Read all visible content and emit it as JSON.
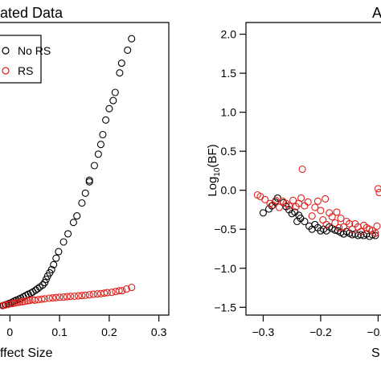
{
  "charts": [
    {
      "title": "ated Data",
      "xlabel": "ffect Size",
      "type": "scatter",
      "xlim": [
        -0.02,
        0.32
      ],
      "ylim": [
        -0.15,
        1.65
      ],
      "x_ticks": [
        0.0,
        0.1,
        0.2,
        0.3
      ],
      "x_tick_labels": [
        "0",
        "0.1",
        "0.2",
        "0.3"
      ],
      "legend": {
        "placement": "top-left",
        "entries": [
          "No RS",
          "RS"
        ]
      },
      "colors": {
        "No RS": "#000000",
        "RS": "#e0201b"
      }
    },
    {
      "title": "A",
      "xlabel": "S",
      "ylabel_base": "Log",
      "ylabel_sub": "10",
      "ylabel_tail": "(BF)",
      "type": "scatter",
      "xlim": [
        -0.33,
        -0.095
      ],
      "ylim": [
        -1.6,
        2.15
      ],
      "x_ticks": [
        -0.3,
        -0.2,
        -0.1
      ],
      "x_tick_labels": [
        "−0.3",
        "−0.2",
        "−0."
      ],
      "y_ticks": [
        -1.5,
        -1.0,
        -0.5,
        0.0,
        0.5,
        1.0,
        1.5,
        2.0
      ],
      "y_tick_labels": [
        "−1.5",
        "−1.0",
        "−0.5",
        "0.0",
        "0.5",
        "1.0",
        "1.5",
        "2.0"
      ],
      "colors": {
        "No RS": "#000000",
        "RS": "#e0201b"
      }
    }
  ],
  "chart_data": [
    {
      "type": "scatter",
      "title": "ated Data",
      "xlabel": "ffect Size",
      "ylabel": "",
      "xlim": [
        -0.02,
        0.32
      ],
      "ylim": [
        -0.15,
        1.65
      ],
      "series": [
        {
          "name": "No RS",
          "color": "#000000",
          "points": [
            [
              0.245,
              1.55
            ],
            [
              0.237,
              1.48
            ],
            [
              0.225,
              1.4
            ],
            [
              0.221,
              1.34
            ],
            [
              0.212,
              1.22
            ],
            [
              0.208,
              1.17
            ],
            [
              0.2,
              1.12
            ],
            [
              0.193,
              1.05
            ],
            [
              0.187,
              0.96
            ],
            [
              0.183,
              0.9
            ],
            [
              0.178,
              0.84
            ],
            [
              0.17,
              0.77
            ],
            [
              0.16,
              0.68
            ],
            [
              0.16,
              0.67
            ],
            [
              0.152,
              0.6
            ],
            [
              0.145,
              0.54
            ],
            [
              0.135,
              0.46
            ],
            [
              0.128,
              0.42
            ],
            [
              0.117,
              0.35
            ],
            [
              0.108,
              0.3
            ],
            [
              0.098,
              0.24
            ],
            [
              0.093,
              0.2
            ],
            [
              0.088,
              0.16
            ],
            [
              0.084,
              0.13
            ],
            [
              0.08,
              0.11
            ],
            [
              0.076,
              0.09
            ],
            [
              0.073,
              0.07
            ],
            [
              0.07,
              0.05
            ],
            [
              0.066,
              0.035
            ],
            [
              0.06,
              0.022
            ],
            [
              0.056,
              0.012
            ],
            [
              0.052,
              0.004
            ],
            [
              0.046,
              -0.008
            ],
            [
              0.042,
              -0.015
            ],
            [
              0.037,
              -0.022
            ],
            [
              0.032,
              -0.03
            ],
            [
              0.027,
              -0.038
            ],
            [
              0.022,
              -0.046
            ],
            [
              0.018,
              -0.052
            ],
            [
              0.013,
              -0.058
            ],
            [
              0.009,
              -0.064
            ],
            [
              0.005,
              -0.07
            ],
            [
              0.001,
              -0.076
            ],
            [
              -0.003,
              -0.08
            ],
            [
              -0.008,
              -0.085
            ],
            [
              -0.013,
              -0.09
            ]
          ]
        },
        {
          "name": "RS",
          "color": "#e0201b",
          "points": [
            [
              0.245,
              0.02
            ],
            [
              0.235,
              0.01
            ],
            [
              0.226,
              0.0
            ],
            [
              0.22,
              0.0
            ],
            [
              0.213,
              -0.005
            ],
            [
              0.205,
              -0.01
            ],
            [
              0.196,
              -0.012
            ],
            [
              0.19,
              -0.015
            ],
            [
              0.183,
              -0.018
            ],
            [
              0.176,
              -0.02
            ],
            [
              0.168,
              -0.022
            ],
            [
              0.16,
              -0.025
            ],
            [
              0.152,
              -0.028
            ],
            [
              0.145,
              -0.03
            ],
            [
              0.138,
              -0.032
            ],
            [
              0.13,
              -0.034
            ],
            [
              0.122,
              -0.035
            ],
            [
              0.115,
              -0.037
            ],
            [
              0.108,
              -0.039
            ],
            [
              0.1,
              -0.04
            ],
            [
              0.093,
              -0.042
            ],
            [
              0.086,
              -0.044
            ],
            [
              0.079,
              -0.046
            ],
            [
              0.07,
              -0.05
            ],
            [
              0.064,
              -0.052
            ],
            [
              0.057,
              -0.055
            ],
            [
              0.05,
              -0.058
            ],
            [
              0.045,
              -0.055
            ],
            [
              0.04,
              -0.06
            ],
            [
              0.035,
              -0.062
            ],
            [
              0.03,
              -0.065
            ],
            [
              0.025,
              -0.068
            ],
            [
              0.02,
              -0.07
            ],
            [
              0.016,
              -0.072
            ],
            [
              0.011,
              -0.075
            ],
            [
              0.006,
              -0.078
            ],
            [
              0.002,
              -0.08
            ],
            [
              -0.004,
              -0.084
            ],
            [
              -0.01,
              -0.088
            ],
            [
              -0.015,
              -0.092
            ]
          ]
        }
      ]
    },
    {
      "type": "scatter",
      "title": "A",
      "xlabel": "S",
      "ylabel": "Log10(BF)",
      "xlim": [
        -0.33,
        -0.095
      ],
      "ylim": [
        -1.6,
        2.15
      ],
      "series": [
        {
          "name": "No RS",
          "color": "#000000",
          "points": [
            [
              -0.3,
              -0.29
            ],
            [
              -0.29,
              -0.24
            ],
            [
              -0.285,
              -0.2
            ],
            [
              -0.279,
              -0.15
            ],
            [
              -0.275,
              -0.1
            ],
            [
              -0.265,
              -0.16
            ],
            [
              -0.26,
              -0.21
            ],
            [
              -0.255,
              -0.25
            ],
            [
              -0.25,
              -0.3
            ],
            [
              -0.245,
              -0.28
            ],
            [
              -0.241,
              -0.4
            ],
            [
              -0.238,
              -0.32
            ],
            [
              -0.235,
              -0.36
            ],
            [
              -0.228,
              -0.4
            ],
            [
              -0.22,
              -0.46
            ],
            [
              -0.215,
              -0.5
            ],
            [
              -0.21,
              -0.44
            ],
            [
              -0.205,
              -0.48
            ],
            [
              -0.2,
              -0.52
            ],
            [
              -0.195,
              -0.5
            ],
            [
              -0.19,
              -0.52
            ],
            [
              -0.185,
              -0.47
            ],
            [
              -0.18,
              -0.49
            ],
            [
              -0.175,
              -0.51
            ],
            [
              -0.17,
              -0.52
            ],
            [
              -0.165,
              -0.54
            ],
            [
              -0.16,
              -0.56
            ],
            [
              -0.155,
              -0.53
            ],
            [
              -0.15,
              -0.55
            ],
            [
              -0.145,
              -0.57
            ],
            [
              -0.14,
              -0.56
            ],
            [
              -0.135,
              -0.58
            ],
            [
              -0.13,
              -0.57
            ],
            [
              -0.125,
              -0.58
            ],
            [
              -0.12,
              -0.56
            ],
            [
              -0.115,
              -0.59
            ],
            [
              -0.11,
              -0.57
            ],
            [
              -0.105,
              -0.58
            ]
          ]
        },
        {
          "name": "RS",
          "color": "#e0201b",
          "points": [
            [
              -0.31,
              -0.06
            ],
            [
              -0.305,
              -0.08
            ],
            [
              -0.297,
              -0.12
            ],
            [
              -0.288,
              -0.17
            ],
            [
              -0.283,
              -0.19
            ],
            [
              -0.278,
              -0.13
            ],
            [
              -0.272,
              -0.22
            ],
            [
              -0.266,
              -0.14
            ],
            [
              -0.26,
              -0.17
            ],
            [
              -0.255,
              -0.2
            ],
            [
              -0.248,
              -0.13
            ],
            [
              -0.243,
              -0.21
            ],
            [
              -0.238,
              -0.17
            ],
            [
              -0.234,
              -0.1
            ],
            [
              -0.232,
              0.27
            ],
            [
              -0.228,
              -0.2
            ],
            [
              -0.222,
              -0.15
            ],
            [
              -0.215,
              -0.33
            ],
            [
              -0.21,
              -0.22
            ],
            [
              -0.205,
              -0.14
            ],
            [
              -0.2,
              -0.26
            ],
            [
              -0.196,
              -0.38
            ],
            [
              -0.192,
              -0.11
            ],
            [
              -0.19,
              -0.44
            ],
            [
              -0.185,
              -0.29
            ],
            [
              -0.18,
              -0.34
            ],
            [
              -0.175,
              -0.42
            ],
            [
              -0.172,
              -0.28
            ],
            [
              -0.168,
              -0.48
            ],
            [
              -0.165,
              -0.36
            ],
            [
              -0.16,
              -0.47
            ],
            [
              -0.155,
              -0.4
            ],
            [
              -0.15,
              -0.43
            ],
            [
              -0.145,
              -0.5
            ],
            [
              -0.14,
              -0.43
            ],
            [
              -0.135,
              -0.47
            ],
            [
              -0.13,
              -0.53
            ],
            [
              -0.125,
              -0.45
            ],
            [
              -0.12,
              -0.48
            ],
            [
              -0.115,
              -0.5
            ],
            [
              -0.11,
              -0.52
            ],
            [
              -0.105,
              -0.55
            ],
            [
              -0.102,
              -0.46
            ],
            [
              -0.1,
              0.02
            ],
            [
              -0.098,
              -0.03
            ]
          ]
        }
      ]
    }
  ]
}
